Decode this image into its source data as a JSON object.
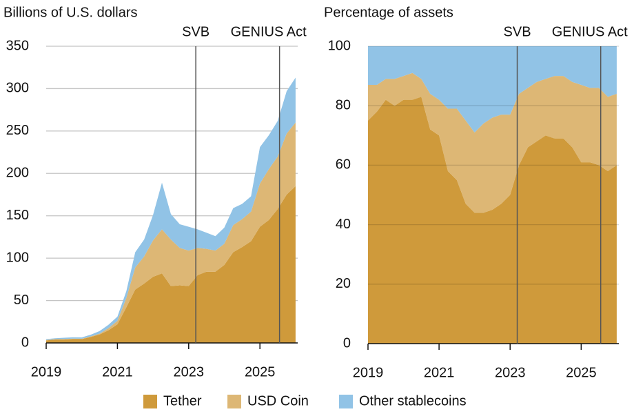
{
  "chart_data": [
    {
      "type": "stacked-area",
      "ylabel": "Billions of U.S. dollars",
      "x": [
        2019.0,
        2019.25,
        2019.5,
        2019.75,
        2020.0,
        2020.25,
        2020.5,
        2020.75,
        2021.0,
        2021.25,
        2021.5,
        2021.75,
        2022.0,
        2022.25,
        2022.5,
        2022.75,
        2023.0,
        2023.25,
        2023.5,
        2023.75,
        2024.0,
        2024.25,
        2024.5,
        2024.75,
        2025.0,
        2025.25,
        2025.5,
        2025.75,
        2026.0
      ],
      "series": [
        {
          "name": "Tether",
          "color": "#cf9a3b",
          "values": [
            3,
            4,
            4,
            4.5,
            4.5,
            7,
            10,
            15,
            22,
            42,
            63,
            70,
            78,
            82,
            67,
            68,
            67,
            80,
            84,
            84,
            92,
            107,
            113,
            120,
            137,
            145,
            158,
            175,
            185
          ]
        },
        {
          "name": "USD Coin",
          "color": "#ddb775",
          "values": [
            0.5,
            0.5,
            0.6,
            0.6,
            0.5,
            0.7,
            1,
            2.5,
            4,
            11,
            26,
            32,
            43,
            52,
            55,
            44,
            42,
            32,
            27,
            25,
            25,
            32,
            33,
            35,
            51,
            60,
            62,
            72,
            75
          ]
        },
        {
          "name": "Other stablecoins",
          "color": "#91c3e6",
          "values": [
            1,
            1,
            1.5,
            1.5,
            1.5,
            2,
            3,
            4,
            5,
            8,
            18,
            20,
            30,
            55,
            30,
            28,
            28,
            22,
            19,
            17,
            19,
            20,
            18,
            18,
            43,
            40,
            42,
            50,
            53
          ]
        }
      ],
      "xlim": [
        2019,
        2026.06
      ],
      "xticks": [
        2019,
        2021,
        2023,
        2025
      ],
      "ylim": [
        0,
        350
      ],
      "yticks": [
        0,
        50,
        100,
        150,
        200,
        250,
        300,
        350
      ],
      "grid": true,
      "grid_layer": "under",
      "vlines": [
        {
          "x": 2023.2,
          "label": "SVB"
        },
        {
          "x": 2025.55,
          "label": "GENIUS Act"
        }
      ]
    },
    {
      "type": "stacked-area",
      "ylabel": "Percentage of assets",
      "x": [
        2019.0,
        2019.25,
        2019.5,
        2019.75,
        2020.0,
        2020.25,
        2020.5,
        2020.75,
        2021.0,
        2021.25,
        2021.5,
        2021.75,
        2022.0,
        2022.25,
        2022.5,
        2022.75,
        2023.0,
        2023.25,
        2023.5,
        2023.75,
        2024.0,
        2024.25,
        2024.5,
        2024.75,
        2025.0,
        2025.25,
        2025.5,
        2025.75,
        2026.0
      ],
      "series": [
        {
          "name": "Tether",
          "color": "#cf9a3b",
          "values": [
            75,
            78,
            82,
            80,
            82,
            82,
            83,
            72,
            70,
            58,
            55,
            47,
            44,
            44,
            45,
            47,
            50,
            60,
            66,
            68,
            70,
            69,
            69,
            66,
            61,
            61,
            60,
            58,
            60
          ]
        },
        {
          "name": "USD Coin",
          "color": "#ddb775",
          "values": [
            12,
            9,
            7,
            9,
            8,
            9,
            6,
            12,
            12,
            21,
            24,
            28,
            27,
            30,
            31,
            30,
            27,
            24,
            20,
            20,
            19,
            21,
            21,
            22,
            26,
            25,
            26,
            25,
            24
          ]
        },
        {
          "name": "Other stablecoins",
          "color": "#91c3e6",
          "values": [
            13,
            13,
            11,
            11,
            10,
            9,
            11,
            16,
            18,
            21,
            21,
            25,
            29,
            26,
            24,
            23,
            23,
            16,
            14,
            12,
            11,
            10,
            10,
            12,
            13,
            14,
            14,
            17,
            16
          ]
        }
      ],
      "xlim": [
        2019,
        2026.06
      ],
      "xticks": [
        2019,
        2021,
        2023,
        2025
      ],
      "ylim": [
        0,
        100
      ],
      "yticks": [
        0,
        20,
        40,
        60,
        80,
        100
      ],
      "grid": true,
      "grid_layer": "over",
      "vlines": [
        {
          "x": 2023.2,
          "label": "SVB"
        },
        {
          "x": 2025.55,
          "label": "GENIUS Act"
        }
      ]
    }
  ]
}
